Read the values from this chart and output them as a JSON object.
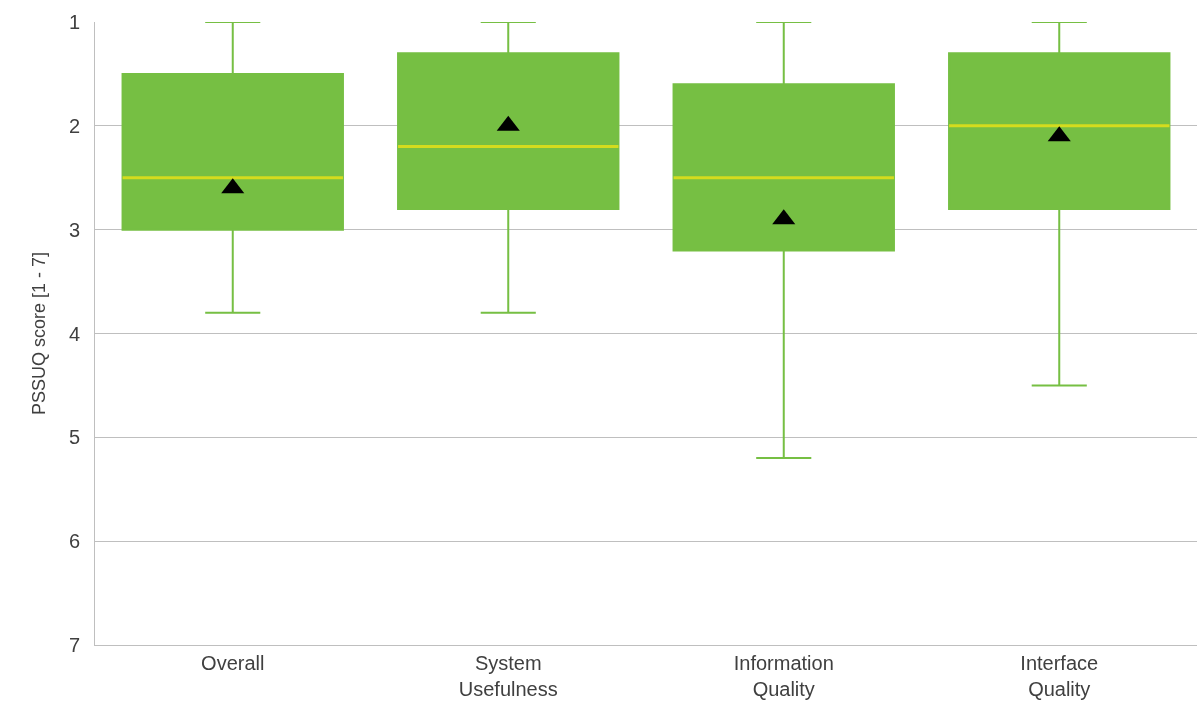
{
  "chart_data": {
    "type": "box",
    "ylabel": "PSSUQ score [1 - 7]",
    "categories": [
      "Overall",
      "System Usefulness",
      "Information Quality",
      "Interface Quality"
    ],
    "series": [
      {
        "color": "#76bf43",
        "boxes": [
          {
            "low": 1,
            "q1": 1.5,
            "median": 2.5,
            "q3": 3,
            "high": 3.8,
            "mean": 2.6
          },
          {
            "low": 1,
            "q1": 1.3,
            "median": 2.2,
            "q3": 2.8,
            "high": 3.8,
            "mean": 2.0
          },
          {
            "low": 1,
            "q1": 1.6,
            "median": 2.5,
            "q3": 3.2,
            "high": 5.2,
            "mean": 2.9
          },
          {
            "low": 1,
            "q1": 1.3,
            "median": 2.0,
            "q3": 2.8,
            "high": 4.5,
            "mean": 2.1
          }
        ]
      }
    ],
    "ylim": [
      7,
      1
    ],
    "yticks": [
      1,
      2,
      3,
      4,
      5,
      6,
      7
    ],
    "grid": "y",
    "marker": "triangle"
  }
}
